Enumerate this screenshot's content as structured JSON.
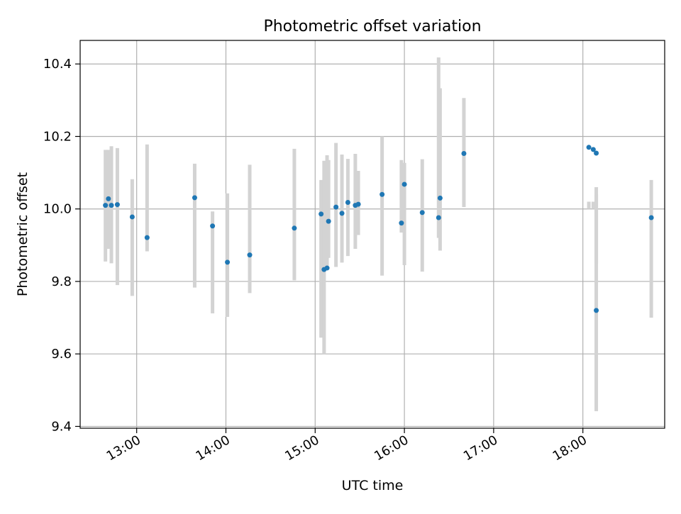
{
  "chart_data": {
    "type": "scatter",
    "title": "Photometric offset variation",
    "xlabel": "UTC time",
    "ylabel": "Photometric offset",
    "x_unit": "UTC time (HH:MM)",
    "xlim": [
      "12:22",
      "18:55"
    ],
    "ylim": [
      9.395,
      10.465
    ],
    "x_ticks": [
      "13:00",
      "14:00",
      "15:00",
      "16:00",
      "17:00",
      "18:00"
    ],
    "y_ticks": [
      9.4,
      9.6,
      9.8,
      10.0,
      10.2,
      10.4
    ],
    "y_tick_labels": [
      "9.4",
      "9.6",
      "9.8",
      "10.0",
      "10.2",
      "10.4"
    ],
    "grid": true,
    "colors": {
      "point": "#1f77b4",
      "errorbar": "#d3d3d3",
      "grid": "#b0b0b0"
    },
    "series": [
      {
        "x": [
          "12:39",
          "12:41",
          "12:43",
          "12:47",
          "12:57",
          "13:07",
          "13:39",
          "13:51",
          "14:01",
          "14:16",
          "14:46",
          "15:04",
          "15:06",
          "15:08",
          "15:09",
          "15:14",
          "15:18",
          "15:22",
          "15:27",
          "15:29",
          "15:45",
          "15:58",
          "16:00",
          "16:12",
          "16:23",
          "16:24",
          "16:40",
          "18:04",
          "18:07",
          "18:09",
          "18:09",
          "18:46"
        ],
        "y": [
          10.01,
          10.028,
          10.01,
          10.012,
          9.978,
          9.921,
          10.031,
          9.953,
          9.853,
          9.873,
          9.947,
          9.986,
          9.833,
          9.837,
          9.966,
          10.005,
          9.988,
          10.018,
          10.01,
          10.013,
          10.04,
          9.961,
          10.068,
          9.99,
          9.976,
          10.03,
          10.153,
          10.17,
          10.164,
          10.154,
          9.72,
          9.976
        ],
        "y_low": [
          9.855,
          9.89,
          9.85,
          9.79,
          9.76,
          9.883,
          9.783,
          9.712,
          9.702,
          9.768,
          9.803,
          9.645,
          9.6,
          9.84,
          9.865,
          9.84,
          9.852,
          9.87,
          9.89,
          9.928,
          9.816,
          9.935,
          9.845,
          9.827,
          9.92,
          9.885,
          10.005,
          10.02,
          10.0,
          9.442,
          9.85,
          9.7
        ],
        "y_high": [
          10.163,
          10.163,
          10.173,
          10.168,
          10.082,
          10.178,
          10.125,
          9.993,
          10.043,
          10.122,
          10.166,
          10.08,
          10.133,
          10.148,
          10.135,
          10.182,
          10.15,
          10.138,
          10.152,
          10.105,
          10.2,
          10.135,
          10.127,
          10.137,
          10.418,
          10.333,
          10.306,
          10.0,
          10.02,
          10.04,
          10.06,
          10.08
        ]
      }
    ]
  }
}
